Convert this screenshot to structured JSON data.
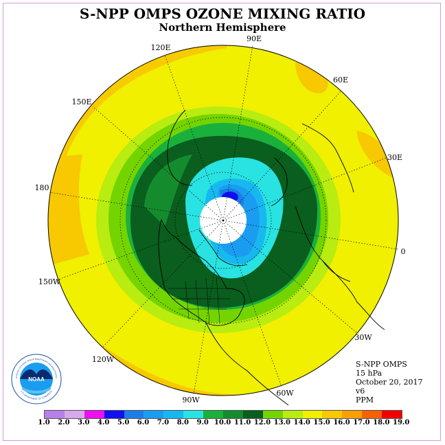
{
  "header": {
    "title": "S-NPP OMPS OZONE MIXING RATIO",
    "subtitle": "Northern Hemisphere"
  },
  "longitude_labels": [
    "90E",
    "60E",
    "30E",
    "0",
    "30W",
    "60W",
    "90W",
    "120W",
    "150W",
    "180",
    "150E",
    "120E"
  ],
  "info": {
    "instrument": "S-NPP OMPS",
    "pressure": "15 hPa",
    "date": "October 20, 2017",
    "version": "v6",
    "units": "PPM"
  },
  "colorbar": {
    "ticks": [
      "1.0",
      "2.0",
      "3.0",
      "4.0",
      "5.0",
      "6.0",
      "7.0",
      "8.0",
      "9.0",
      "10.0",
      "11.0",
      "12.0",
      "13.0",
      "14.0",
      "15.0",
      "16.0",
      "17.0",
      "18.0",
      "19.0"
    ],
    "colors": [
      "#b77fe8",
      "#d8a7ec",
      "#ee10ee",
      "#1010ee",
      "#1b7ee6",
      "#1a9df0",
      "#17b8f0",
      "#29e2e2",
      "#1ab03c",
      "#148c2e",
      "#0a5e1e",
      "#74d400",
      "#b9ec10",
      "#f0f000",
      "#f8c800",
      "#f8a000",
      "#f86000",
      "#f00000",
      "#8c5a3c"
    ]
  },
  "logo": {
    "text": "NOAA",
    "ring_text": "NATIONAL OCEANIC AND ATMOSPHERIC ADMINISTRATION",
    "ring_text_bottom": "U.S. DEPARTMENT OF COMMERCE"
  }
}
